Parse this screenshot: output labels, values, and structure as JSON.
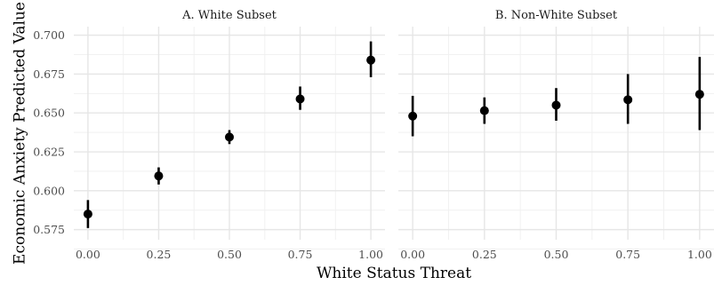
{
  "chart_data": {
    "type": "scatter",
    "xlabel": "White Status Threat",
    "ylabel": "Economic Anxiety Predicted Value",
    "xlim": [
      -0.05,
      1.05
    ],
    "ylim": [
      0.5685,
      0.7055
    ],
    "x_ticks": [
      "0.00",
      "0.25",
      "0.50",
      "0.75",
      "1.00"
    ],
    "x_tick_values": [
      0,
      0.25,
      0.5,
      0.75,
      1.0
    ],
    "y_ticks": [
      "0.575",
      "0.600",
      "0.625",
      "0.650",
      "0.675",
      "0.700"
    ],
    "y_tick_values": [
      0.575,
      0.6,
      0.625,
      0.65,
      0.675,
      0.7
    ],
    "grid": true,
    "panels": [
      {
        "title": "A. White Subset",
        "points": [
          {
            "x": 0.0,
            "y": 0.585,
            "lower": 0.576,
            "upper": 0.594
          },
          {
            "x": 0.25,
            "y": 0.6095,
            "lower": 0.604,
            "upper": 0.615
          },
          {
            "x": 0.5,
            "y": 0.6345,
            "lower": 0.63,
            "upper": 0.639
          },
          {
            "x": 0.75,
            "y": 0.659,
            "lower": 0.652,
            "upper": 0.667
          },
          {
            "x": 1.0,
            "y": 0.684,
            "lower": 0.673,
            "upper": 0.696
          }
        ]
      },
      {
        "title": "B. Non-White Subset",
        "points": [
          {
            "x": 0.0,
            "y": 0.648,
            "lower": 0.635,
            "upper": 0.661
          },
          {
            "x": 0.25,
            "y": 0.6515,
            "lower": 0.643,
            "upper": 0.66
          },
          {
            "x": 0.5,
            "y": 0.655,
            "lower": 0.645,
            "upper": 0.666
          },
          {
            "x": 0.75,
            "y": 0.6585,
            "lower": 0.643,
            "upper": 0.675
          },
          {
            "x": 1.0,
            "y": 0.662,
            "lower": 0.639,
            "upper": 0.686
          }
        ]
      }
    ]
  }
}
